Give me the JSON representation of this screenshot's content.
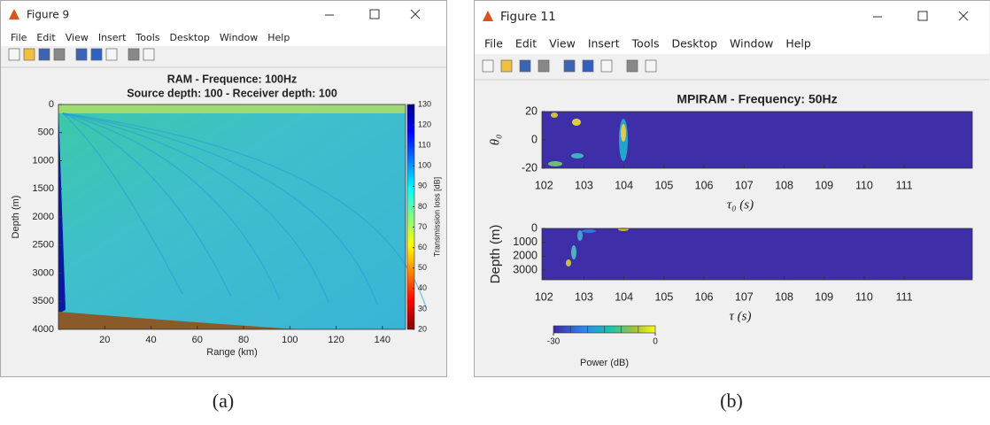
{
  "windows": [
    {
      "title": "Figure 9",
      "menu": [
        "File",
        "Edit",
        "View",
        "Insert",
        "Tools",
        "Desktop",
        "Window",
        "Help"
      ],
      "figure": {
        "title": [
          "RAM - Frequence: 100Hz",
          "Source depth: 100 - Receiver depth: 100"
        ],
        "axes": [
          {
            "xlabel": "Range (km)",
            "ylabel": "Depth (m)",
            "xlim": [
              0,
              150
            ],
            "xticks": [
              20,
              40,
              60,
              80,
              100,
              120,
              140
            ],
            "ylim": [
              0,
              4000
            ],
            "yticks": [
              0,
              500,
              1000,
              1500,
              2000,
              2500,
              3000,
              3500,
              4000
            ]
          }
        ],
        "colorbar": {
          "label": "Transmission loss [dB]",
          "lim": [
            20,
            130
          ],
          "ticks": [
            20,
            30,
            40,
            50,
            60,
            70,
            80,
            90,
            100,
            110,
            120,
            130
          ]
        }
      },
      "caption": "(a)"
    },
    {
      "title": "Figure 11",
      "menu": [
        "File",
        "Edit",
        "View",
        "Insert",
        "Tools",
        "Desktop",
        "Window",
        "Help"
      ],
      "figure": {
        "title": [
          "MPIRAM - Frequency: 50Hz"
        ],
        "axes": [
          {
            "xlabel": "τ₀ (s)",
            "ylabel": "θ₀",
            "xlim": [
              101.95,
              112.7
            ],
            "xticks": [
              102,
              103,
              104,
              105,
              106,
              107,
              108,
              109,
              110,
              111
            ],
            "ylim": [
              20,
              -20
            ],
            "yticks": [
              20,
              0,
              -20
            ]
          },
          {
            "xlabel": "τ (s)",
            "ylabel": "Depth (m)",
            "xlim": [
              101.95,
              112.7
            ],
            "xticks": [
              102,
              103,
              104,
              105,
              106,
              107,
              108,
              109,
              110,
              111
            ],
            "ylim": [
              0,
              3700
            ],
            "yticks": [
              0,
              1000,
              2000,
              3000
            ]
          }
        ],
        "colorbar": {
          "label": "Power (dB)",
          "lim": [
            -30,
            0
          ],
          "ticks": [
            -30,
            0
          ]
        }
      },
      "caption": "(b)"
    }
  ]
}
